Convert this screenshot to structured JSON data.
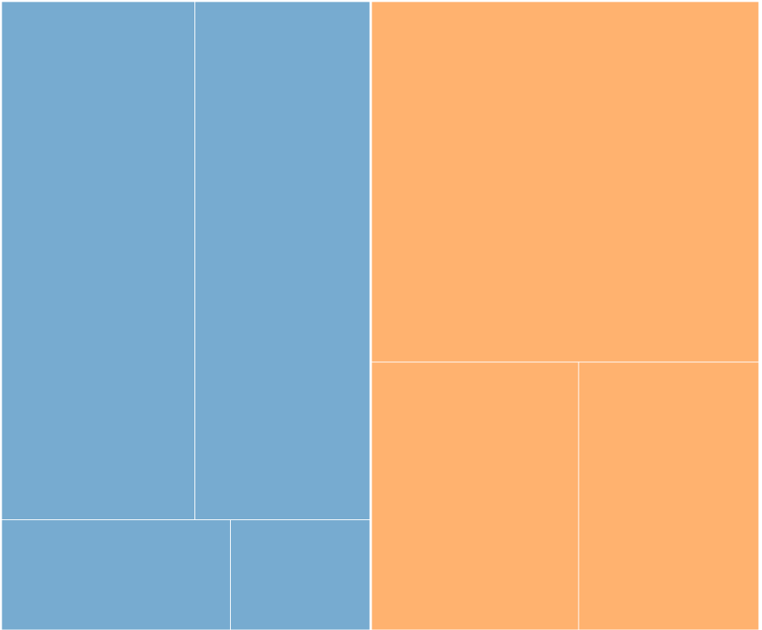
{
  "chart_data": {
    "type": "treemap",
    "title": "",
    "groups": [
      {
        "color": "#77abd0",
        "children": [
          {
            "value": 18.2
          },
          {
            "value": 16.5
          },
          {
            "value": 4.6
          },
          {
            "value": 2.8
          }
        ]
      },
      {
        "color": "#ffb26f",
        "children": [
          {
            "value": 25.4
          },
          {
            "value": 10.1
          },
          {
            "value": 8.8
          }
        ]
      }
    ]
  }
}
